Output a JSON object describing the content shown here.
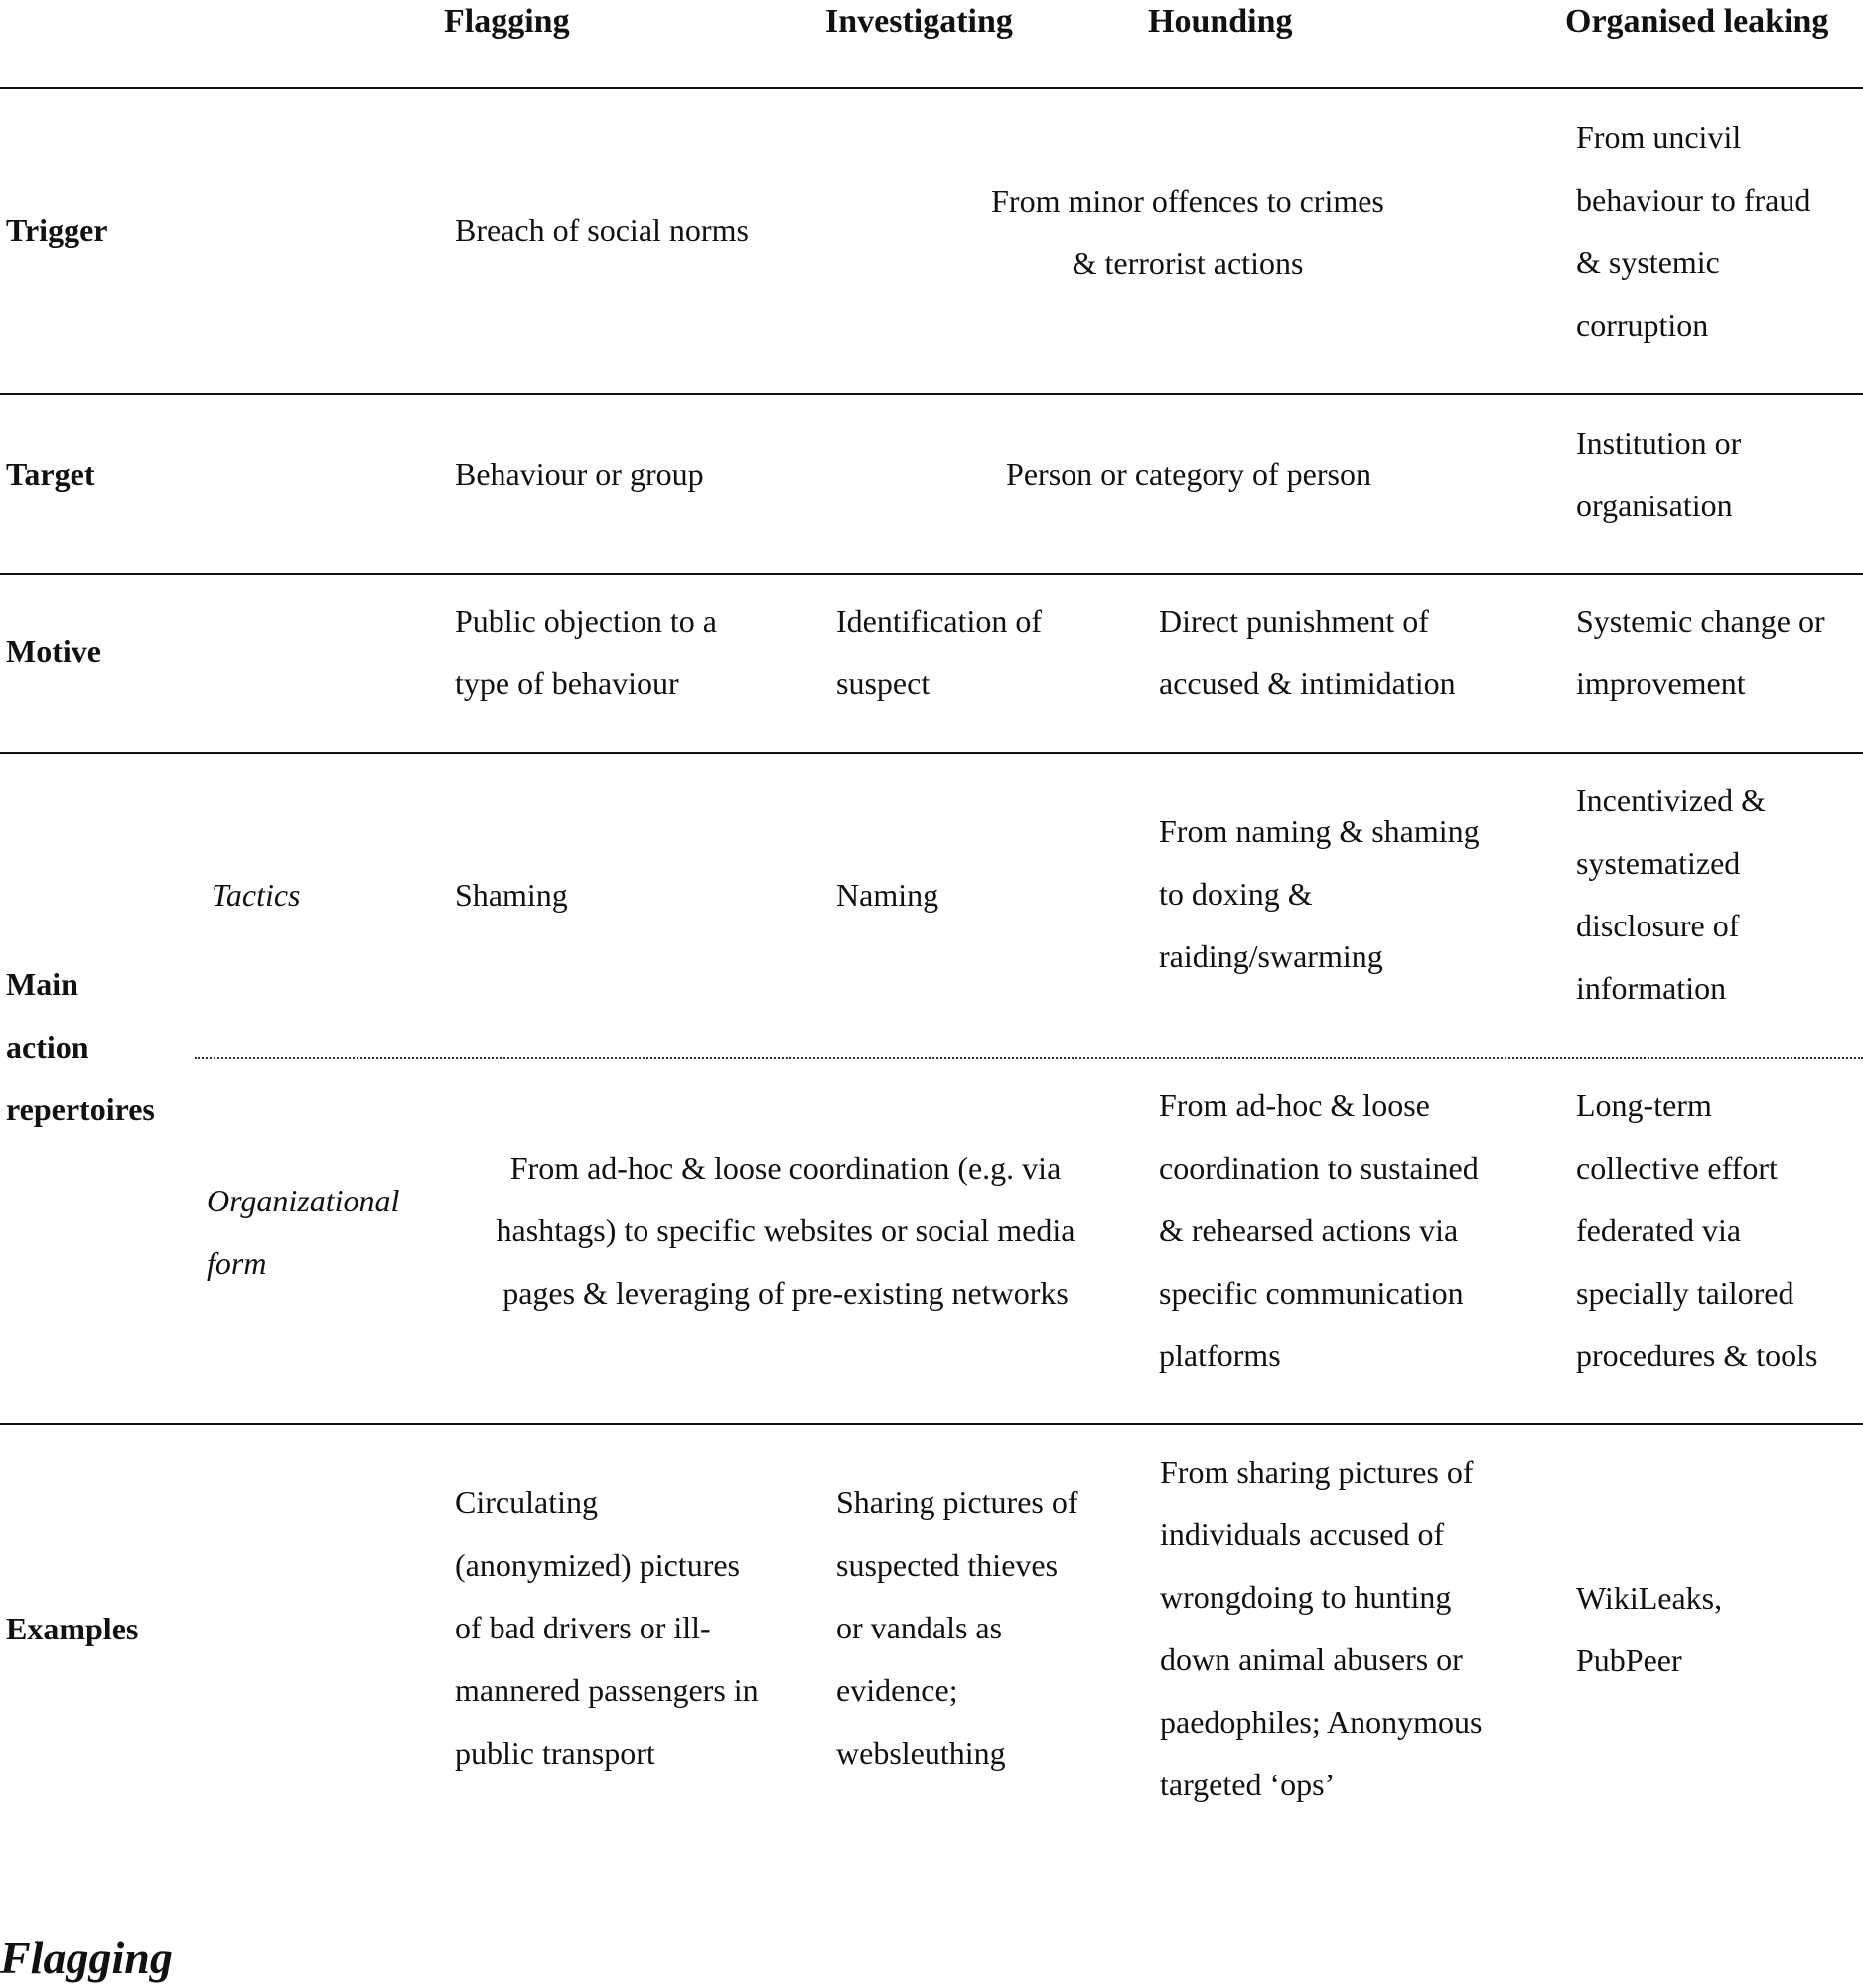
{
  "headers": [
    "Flagging",
    "Investigating",
    "Hounding",
    "Organised leaking"
  ],
  "rows": {
    "trigger": {
      "label": "Trigger",
      "flagging": "Breach of social norms",
      "investigating_hounding": "From minor offences to crimes\n& terrorist actions",
      "organised_leaking": "From uncivil\nbehaviour to fraud\n& systemic\ncorruption"
    },
    "target": {
      "label": "Target",
      "flagging": "Behaviour or group",
      "investigating_hounding": "Person or category of person",
      "organised_leaking": "Institution or\norganisation"
    },
    "motive": {
      "label": "Motive",
      "flagging": "Public objection to a\ntype of behaviour",
      "investigating": "Identification of\nsuspect",
      "hounding": "Direct punishment of\naccused & intimidation",
      "organised_leaking": "Systemic change or\nimprovement"
    },
    "main_action": {
      "label": "Main\naction\nrepertoires",
      "tactics": {
        "label": "Tactics",
        "flagging": "Shaming",
        "investigating": "Naming",
        "hounding": "From naming & shaming\nto doxing &\nraiding/swarming",
        "organised_leaking": "Incentivized &\nsystematized\ndisclosure of\ninformation"
      },
      "organizational_form": {
        "label": "Organizational\nform",
        "flagging_investigating": "From ad-hoc & loose coordination (e.g. via\nhashtags) to specific websites or social media\npages & leveraging of pre-existing networks",
        "hounding": "From ad-hoc & loose\ncoordination to sustained\n& rehearsed actions via\nspecific communication\nplatforms",
        "organised_leaking": "Long-term\ncollective effort\nfederated via\nspecially tailored\nprocedures & tools"
      }
    },
    "examples": {
      "label": "Examples",
      "flagging": "Circulating\n(anonymized) pictures\nof bad drivers or ill-\nmannered passengers in\npublic transport",
      "investigating": "Sharing pictures of\nsuspected thieves\nor vandals as\nevidence;\nwebsleuthing",
      "hounding": "From sharing pictures of\nindividuals accused of\nwrongdoing to hunting\ndown animal abusers or\npaedophiles; Anonymous\ntargeted ‘ops’",
      "organised_leaking": "WikiLeaks,\nPubPeer"
    }
  },
  "next_heading": "Flagging"
}
